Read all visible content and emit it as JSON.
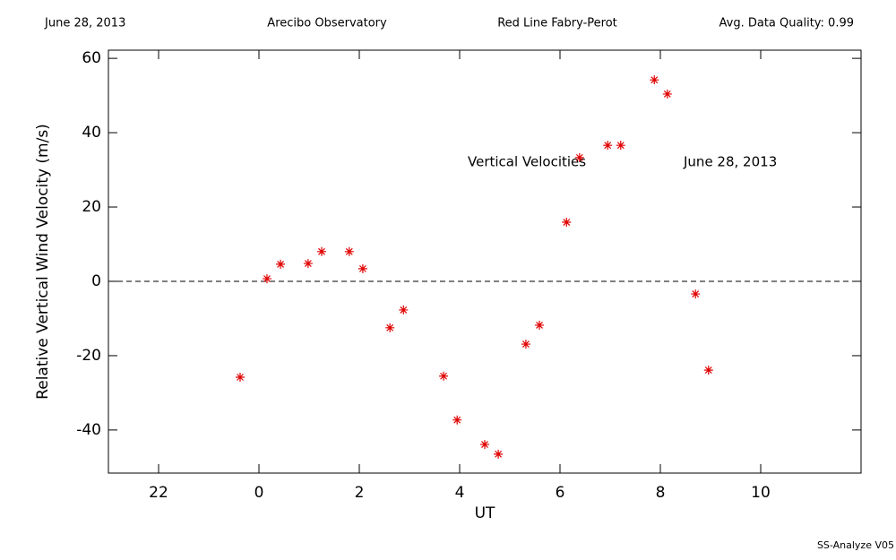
{
  "chart_data": {
    "type": "scatter",
    "header": [
      "June 28, 2013",
      "Arecibo Observatory",
      "Red Line Fabry-Perot",
      "Avg. Data Quality: 0.99"
    ],
    "annotations": [
      "Vertical Velocities",
      "June 28, 2013"
    ],
    "x_label": "UT",
    "y_label": "Relative Vertical Wind Velocity (m/s)",
    "footer": "SS-Analyze V05",
    "xlim": [
      -3,
      12
    ],
    "ylim": [
      -51.6,
      62.2
    ],
    "xticks": [
      {
        "value": -2,
        "label": "22"
      },
      0,
      2,
      4,
      6,
      8,
      10
    ],
    "yticks": [
      -40,
      -20,
      0,
      20,
      40,
      60
    ],
    "hline": 0,
    "color": "#e00000",
    "series": [
      {
        "name": "Vertical Velocities",
        "x": [
          -0.375,
          0.16,
          0.43,
          0.98,
          1.25,
          1.8,
          2.07,
          2.61,
          2.88,
          3.68,
          3.95,
          4.5,
          4.77,
          5.32,
          5.59,
          6.13,
          6.39,
          6.95,
          7.21,
          7.88,
          8.14,
          8.7,
          8.96
        ],
        "values": [
          -25.8,
          0.7,
          4.6,
          4.8,
          8.0,
          8.0,
          3.4,
          -12.5,
          -7.7,
          -25.5,
          -37.3,
          -43.9,
          -46.5,
          -16.9,
          -11.8,
          15.9,
          33.3,
          36.6,
          36.6,
          54.2,
          50.4,
          -3.4,
          -23.9
        ]
      }
    ]
  }
}
